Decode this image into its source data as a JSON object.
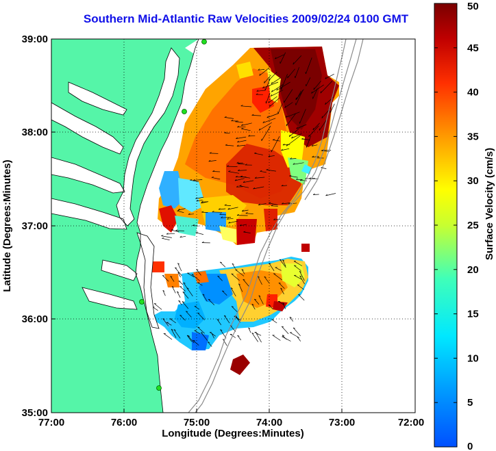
{
  "title": "Southern Mid-Atlantic Raw Velocities 2009/02/24 0100 GMT",
  "axes": {
    "xlabel": "Longitude (Degrees:Minutes)",
    "ylabel": "Latitude (Degrees:Minutes)",
    "x_ticks": [
      "77:00",
      "76:00",
      "75:00",
      "74:00",
      "73:00",
      "72:00"
    ],
    "y_ticks": [
      "39:00",
      "38:00",
      "37:00",
      "36:00",
      "35:00"
    ],
    "xlim": [
      -77,
      -72
    ],
    "ylim": [
      35,
      39
    ]
  },
  "colorbar": {
    "label": "Surface Velocity (cm/s)",
    "ticks": [
      "50",
      "45",
      "40",
      "35",
      "30",
      "25",
      "20",
      "15",
      "10",
      "5",
      "0"
    ],
    "range": [
      0,
      50
    ]
  },
  "colors": {
    "land": "#55f5a8",
    "title": "#1010e8",
    "grid": "#000000"
  }
}
